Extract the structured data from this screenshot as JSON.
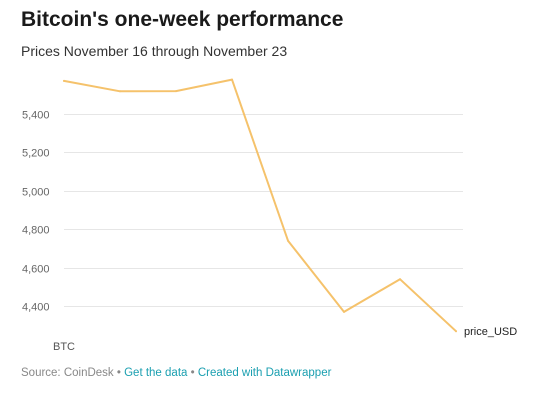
{
  "header": {
    "title": "Bitcoin's one-week performance",
    "subtitle": "Prices November 16 through November 23"
  },
  "footer": {
    "source": "Source: CoinDesk",
    "sep1": " • ",
    "get_data": "Get the data",
    "sep2": " • ",
    "created_with": "Created with Datawrapper"
  },
  "colors": {
    "line": "#f5c26b",
    "grid": "#e6e6e6",
    "link": "#1a9fb0"
  },
  "chart_data": {
    "type": "line",
    "title": "Bitcoin's one-week performance",
    "subtitle": "Prices November 16 through November 23",
    "x_start_label": "BTC",
    "series": [
      {
        "name": "price_USD",
        "values": [
          5570,
          5516,
          5517,
          5577,
          4740,
          4370,
          4540,
          4270
        ]
      }
    ],
    "y_ticks": [
      4400,
      4600,
      4800,
      5000,
      5200,
      5400
    ],
    "y_tick_labels": [
      "4,400",
      "4,600",
      "4,800",
      "5,000",
      "5,200",
      "5,400"
    ],
    "ylim": [
      4245,
      5580
    ],
    "grid": true
  }
}
